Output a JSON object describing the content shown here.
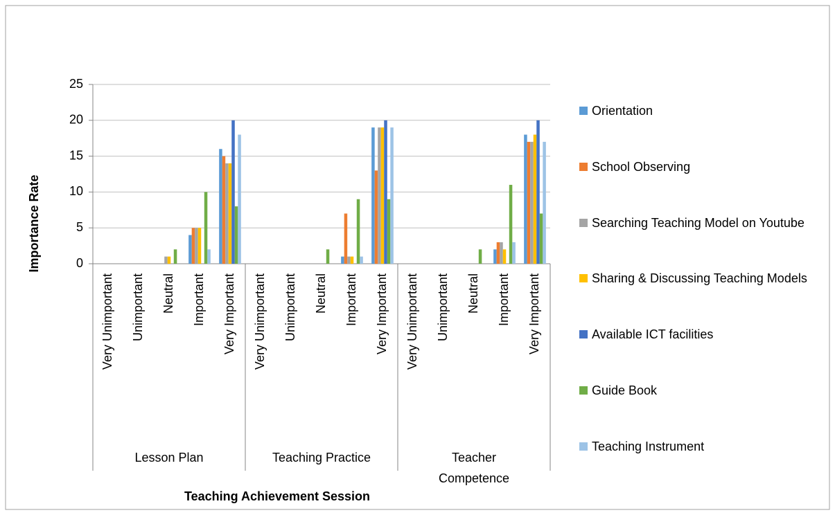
{
  "chart_data": {
    "type": "bar",
    "x_label": "Teaching Achievement Session",
    "y_label": "Importance Rate",
    "categories": [
      "Very Unimportant",
      "Unimportant",
      "Neutral",
      "Important",
      "Very Important",
      "Very Unimportant",
      "Unimportant",
      "Neutral",
      "Important",
      "Very Important",
      "Very Unimportant",
      "Unimportant",
      "Neutral",
      "Important",
      "Very Important"
    ],
    "category_groups": [
      "Lesson Plan",
      "Teaching Practice",
      "Teacher Competence"
    ],
    "series": [
      {
        "name": "Orientation",
        "color": "#5b9bd5",
        "values": [
          0,
          0,
          0,
          4,
          16,
          0,
          0,
          0,
          1,
          19,
          0,
          0,
          0,
          2,
          18
        ]
      },
      {
        "name": "School Observing",
        "color": "#ed7d31",
        "values": [
          0,
          0,
          0,
          5,
          15,
          0,
          0,
          0,
          7,
          13,
          0,
          0,
          0,
          3,
          17
        ]
      },
      {
        "name": "Searching Teaching Model on Youtube",
        "color": "#a5a5a5",
        "values": [
          0,
          0,
          1,
          5,
          14,
          0,
          0,
          0,
          1,
          19,
          0,
          0,
          0,
          3,
          17
        ]
      },
      {
        "name": "Sharing & Discussing Teaching Models",
        "color": "#ffc000",
        "values": [
          0,
          0,
          1,
          5,
          14,
          0,
          0,
          0,
          1,
          19,
          0,
          0,
          0,
          2,
          18
        ]
      },
      {
        "name": "Available ICT facilities",
        "color": "#4472c4",
        "values": [
          0,
          0,
          0,
          0,
          20,
          0,
          0,
          0,
          0,
          20,
          0,
          0,
          0,
          0,
          20
        ]
      },
      {
        "name": "Guide Book",
        "color": "#70ad47",
        "values": [
          0,
          0,
          2,
          10,
          8,
          0,
          0,
          2,
          9,
          9,
          0,
          0,
          2,
          11,
          7
        ]
      },
      {
        "name": "Teaching Instrument",
        "color": "#9dc3e6",
        "values": [
          0,
          0,
          0,
          2,
          18,
          0,
          0,
          0,
          1,
          19,
          0,
          0,
          0,
          3,
          17
        ]
      }
    ],
    "ylim": [
      0,
      25
    ],
    "yticks": [
      0,
      5,
      10,
      15,
      20,
      25
    ],
    "grid": true,
    "legend": "right"
  }
}
